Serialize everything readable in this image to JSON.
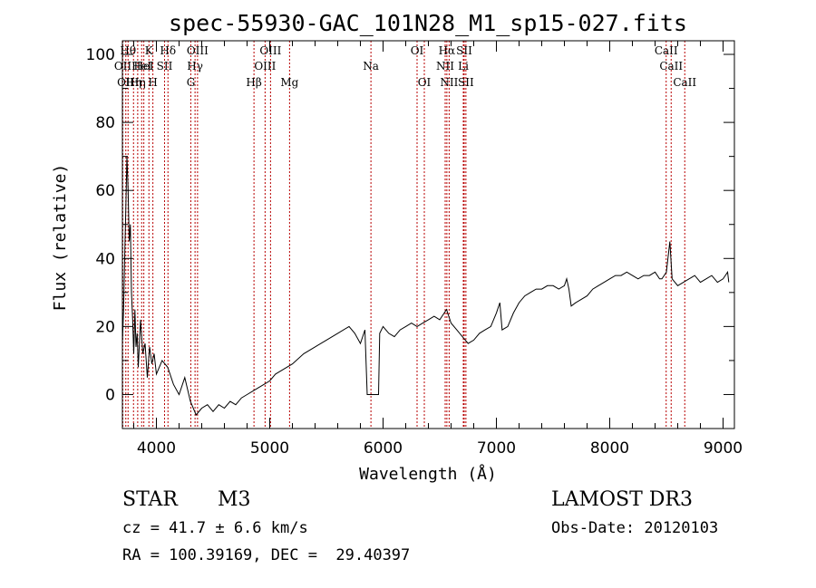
{
  "chart_data": {
    "type": "line",
    "title": "spec-55930-GAC_101N28_M1_sp15-027.fits",
    "xlabel": "Wavelength (Å)",
    "ylabel": "Flux (relative)",
    "xlim": [
      3700,
      9100
    ],
    "ylim": [
      -10,
      104
    ],
    "x_ticks": [
      4000,
      5000,
      6000,
      7000,
      8000,
      9000
    ],
    "y_ticks": [
      0,
      20,
      40,
      60,
      80,
      100
    ],
    "x_tick_labels": [
      "4000",
      "5000",
      "6000",
      "7000",
      "8000",
      "9000"
    ],
    "y_tick_labels": [
      "0",
      "20",
      "40",
      "60",
      "80",
      "100"
    ],
    "grid": false,
    "series": [
      {
        "name": "spectrum",
        "color": "#000000",
        "x": [
          3700,
          3710,
          3720,
          3730,
          3740,
          3750,
          3760,
          3770,
          3780,
          3790,
          3800,
          3810,
          3820,
          3830,
          3840,
          3860,
          3880,
          3900,
          3920,
          3940,
          3960,
          3980,
          4000,
          4050,
          4100,
          4150,
          4200,
          4250,
          4300,
          4350,
          4400,
          4450,
          4500,
          4550,
          4600,
          4650,
          4700,
          4750,
          4800,
          4850,
          4900,
          4950,
          5000,
          5050,
          5100,
          5200,
          5300,
          5400,
          5500,
          5600,
          5700,
          5750,
          5800,
          5840,
          5860,
          5880,
          5890,
          5950,
          5960,
          5970,
          6000,
          6050,
          6100,
          6150,
          6200,
          6250,
          6300,
          6350,
          6400,
          6450,
          6500,
          6540,
          6560,
          6580,
          6600,
          6650,
          6700,
          6750,
          6800,
          6850,
          6900,
          6950,
          7000,
          7030,
          7050,
          7100,
          7150,
          7200,
          7250,
          7300,
          7350,
          7400,
          7450,
          7500,
          7550,
          7600,
          7620,
          7640,
          7660,
          7700,
          7750,
          7800,
          7850,
          7900,
          7950,
          8000,
          8050,
          8100,
          8150,
          8200,
          8250,
          8300,
          8350,
          8400,
          8440,
          8460,
          8480,
          8500,
          8530,
          8550,
          8600,
          8650,
          8700,
          8750,
          8800,
          8850,
          8900,
          8950,
          9000,
          9020,
          9040,
          9050
        ],
        "y": [
          15,
          25,
          40,
          55,
          70,
          60,
          45,
          50,
          30,
          22,
          12,
          25,
          14,
          18,
          8,
          22,
          12,
          15,
          5,
          14,
          9,
          12,
          6,
          10,
          8,
          3,
          0,
          5,
          -2,
          -6,
          -4,
          -3,
          -5,
          -3,
          -4,
          -2,
          -3,
          -1,
          0,
          1,
          2,
          3,
          4,
          6,
          7,
          9,
          12,
          14,
          16,
          18,
          20,
          18,
          15,
          19,
          0,
          0,
          0,
          0,
          0,
          18,
          20,
          18,
          17,
          19,
          20,
          21,
          20,
          21,
          22,
          23,
          22,
          24,
          25,
          23,
          21,
          19,
          17,
          15,
          16,
          18,
          19,
          20,
          24,
          27,
          19,
          20,
          24,
          27,
          29,
          30,
          31,
          31,
          32,
          32,
          31,
          32,
          34,
          31,
          26,
          27,
          28,
          29,
          31,
          32,
          33,
          34,
          35,
          35,
          36,
          35,
          34,
          35,
          35,
          36,
          34,
          34,
          35,
          36,
          45,
          34,
          32,
          33,
          34,
          35,
          33,
          34,
          35,
          33,
          34,
          35,
          36,
          33
        ],
        "highlights": [
          {
            "x0": 5900,
            "x1": 6000,
            "y": 0
          }
        ]
      }
    ],
    "lines": [
      {
        "x": 3704,
        "label": "OII",
        "row": 1
      },
      {
        "x": 3730,
        "label": "OII",
        "row": 2
      },
      {
        "x": 3750,
        "label": "Hθ",
        "row": 0
      },
      {
        "x": 3798,
        "label": "Hη",
        "row": 2
      },
      {
        "x": 3835,
        "label": "Hη",
        "row": 2
      },
      {
        "x": 3870,
        "label": "HeI",
        "row": 1
      },
      {
        "x": 3889,
        "label": "HeI",
        "row": 1
      },
      {
        "x": 3934,
        "label": "K",
        "row": 0
      },
      {
        "x": 3969,
        "label": "H",
        "row": 2
      },
      {
        "x": 4072,
        "label": "SII",
        "row": 1
      },
      {
        "x": 4102,
        "label": "Hδ",
        "row": 0
      },
      {
        "x": 4304,
        "label": "G",
        "row": 2
      },
      {
        "x": 4341,
        "label": "Hγ",
        "row": 1
      },
      {
        "x": 4363,
        "label": "OIII",
        "row": 0
      },
      {
        "x": 4861,
        "label": "Hβ",
        "row": 2
      },
      {
        "x": 4959,
        "label": "OIII",
        "row": 1
      },
      {
        "x": 5007,
        "label": "OIII",
        "row": 0
      },
      {
        "x": 5175,
        "label": "Mg",
        "row": 2
      },
      {
        "x": 5893,
        "label": "Na",
        "row": 1
      },
      {
        "x": 6300,
        "label": "OI",
        "row": 0
      },
      {
        "x": 6364,
        "label": "OI",
        "row": 2
      },
      {
        "x": 6548,
        "label": "NII",
        "row": 1
      },
      {
        "x": 6563,
        "label": "Hα",
        "row": 0
      },
      {
        "x": 6583,
        "label": "NII",
        "row": 2
      },
      {
        "x": 6708,
        "label": "Li",
        "row": 1
      },
      {
        "x": 6716,
        "label": "SII",
        "row": 0
      },
      {
        "x": 6731,
        "label": "SII",
        "row": 2
      },
      {
        "x": 8498,
        "label": "CaII",
        "row": 0
      },
      {
        "x": 8542,
        "label": "CaII",
        "row": 1
      },
      {
        "x": 8662,
        "label": "CaII",
        "row": 2
      }
    ]
  },
  "info": {
    "class": "STAR",
    "subclass": "M3",
    "survey": "LAMOST DR3",
    "cz": "cz = 41.7 ± 6.6 km/s",
    "obs_date": "Obs-Date: 20120103",
    "coords": "RA = 100.39169, DEC =  29.40397"
  },
  "colors": {
    "line_marker": "#b80000",
    "spectrum": "#000000"
  }
}
